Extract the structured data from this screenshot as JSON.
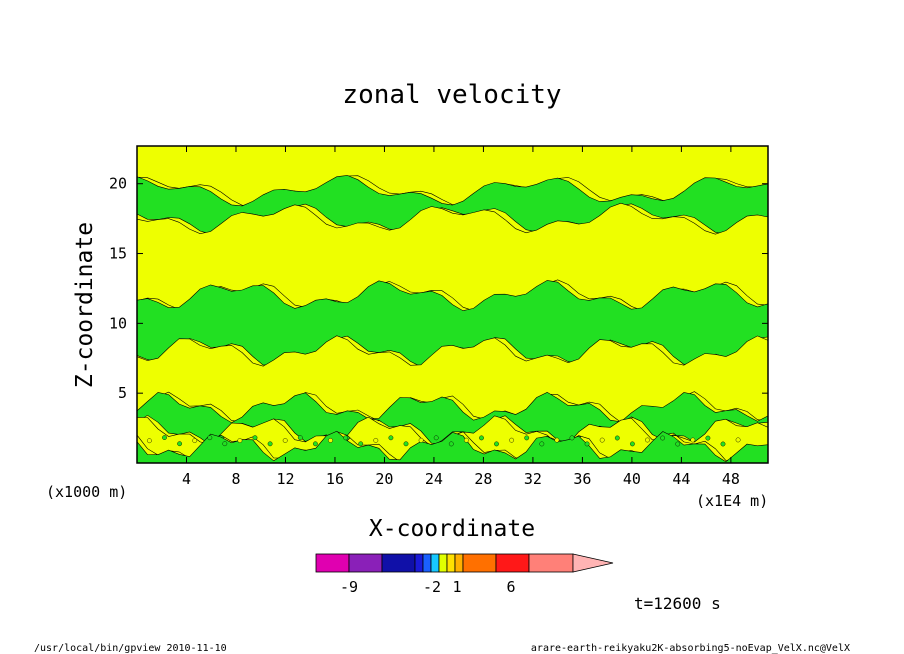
{
  "chart_data": {
    "type": "heatmap",
    "title": "zonal velocity",
    "xlabel": "X-coordinate",
    "ylabel": "Z-coordinate",
    "x_unit_label": "(x1E4 m)",
    "y_unit_label": "(x1000 m)",
    "xlim": [
      0,
      51
    ],
    "ylim": [
      0,
      22.7
    ],
    "x_ticks": [
      4,
      8,
      12,
      16,
      20,
      24,
      28,
      32,
      36,
      40,
      44,
      48
    ],
    "y_ticks": [
      5,
      10,
      15,
      20
    ],
    "time_label": "t=12600 s",
    "colorbar": {
      "colors": [
        "#e000b0",
        "#8a20b8",
        "#1010a8",
        "#1a1ad8",
        "#1a60ff",
        "#18c8ff",
        "#e0ff00",
        "#ffe000",
        "#ffb000",
        "#ff7000",
        "#ff1818",
        "#ff8078",
        "#ffb4b4"
      ],
      "tick_labels": [
        "-9",
        "-2",
        "1",
        "6"
      ]
    },
    "field_colors": {
      "positive": "#eeff00",
      "negative": "#22e022"
    },
    "bands": [
      {
        "sign": "positive",
        "z_range": [
          19.5,
          22.7
        ],
        "note": "upper yellow layer with green patches"
      },
      {
        "sign": "negative",
        "z_range": [
          17.5,
          19.5
        ]
      },
      {
        "sign": "positive",
        "z_range": [
          12.0,
          17.5
        ]
      },
      {
        "sign": "negative",
        "z_range": [
          8.0,
          12.0
        ]
      },
      {
        "sign": "positive",
        "z_range": [
          4.0,
          8.0
        ]
      },
      {
        "sign": "negative",
        "z_range": [
          2.3,
          4.0
        ]
      },
      {
        "sign": "positive",
        "z_range": [
          1.2,
          2.3
        ]
      },
      {
        "sign": "negative",
        "z_range": [
          0,
          1.2
        ]
      }
    ]
  },
  "footer": {
    "left": "/usr/local/bin/gpview  2010-11-10",
    "right": "arare-earth-reikyaku2K-absorbing5-noEvap_VelX.nc@VelX"
  }
}
